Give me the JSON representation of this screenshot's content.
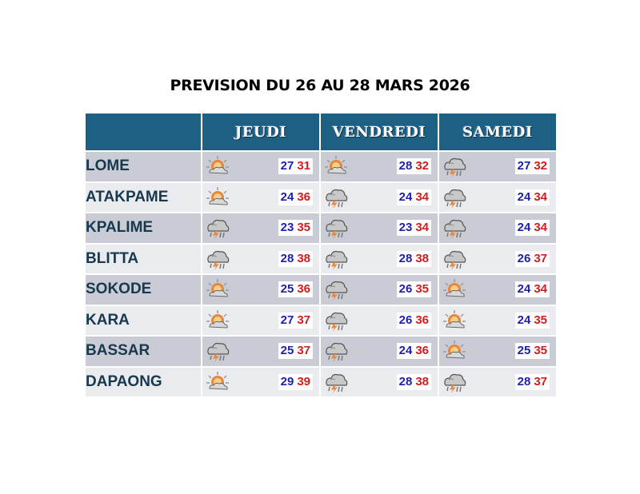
{
  "title": "PREVISION DU 26 AU 28 MARS 2026",
  "days": [
    "JEUDI",
    "VENDREDI",
    "SAMEDI"
  ],
  "colors": {
    "header_bg": "#1e5f84",
    "min_temp": "#1f1fa8",
    "max_temp": "#d41c1c",
    "row_dark": "#c9ccd5",
    "row_light": "#eaebee"
  },
  "rows": [
    {
      "city": "LOME",
      "f": [
        {
          "icon": "sun-cloud-icon",
          "min": "27",
          "max": "31"
        },
        {
          "icon": "sun-cloud-icon",
          "min": "28",
          "max": "32"
        },
        {
          "icon": "storm-cloud-icon",
          "min": "27",
          "max": "32"
        }
      ]
    },
    {
      "city": "ATAKPAME",
      "f": [
        {
          "icon": "sun-cloud-icon",
          "min": "24",
          "max": "36"
        },
        {
          "icon": "storm-cloud-icon",
          "min": "24",
          "max": "34"
        },
        {
          "icon": "storm-cloud-icon",
          "min": "24",
          "max": "34"
        }
      ]
    },
    {
      "city": "KPALIME",
      "f": [
        {
          "icon": "storm-cloud-icon",
          "min": "23",
          "max": "35"
        },
        {
          "icon": "storm-cloud-icon",
          "min": "23",
          "max": "34"
        },
        {
          "icon": "storm-cloud-icon",
          "min": "24",
          "max": "34"
        }
      ]
    },
    {
      "city": "BLITTA",
      "f": [
        {
          "icon": "storm-cloud-icon",
          "min": "28",
          "max": "38"
        },
        {
          "icon": "storm-cloud-icon",
          "min": "28",
          "max": "38"
        },
        {
          "icon": "storm-cloud-icon",
          "min": "26",
          "max": "37"
        }
      ]
    },
    {
      "city": "SOKODE",
      "f": [
        {
          "icon": "sun-cloud-icon",
          "min": "25",
          "max": "36"
        },
        {
          "icon": "storm-cloud-icon",
          "min": "26",
          "max": "35"
        },
        {
          "icon": "sun-cloud-icon",
          "min": "24",
          "max": "34"
        }
      ]
    },
    {
      "city": "KARA",
      "f": [
        {
          "icon": "sun-cloud-icon",
          "min": "27",
          "max": "37"
        },
        {
          "icon": "storm-cloud-icon",
          "min": "26",
          "max": "36"
        },
        {
          "icon": "sun-cloud-icon",
          "min": "24",
          "max": "35"
        }
      ]
    },
    {
      "city": "BASSAR",
      "f": [
        {
          "icon": "storm-cloud-icon",
          "min": "25",
          "max": "37"
        },
        {
          "icon": "storm-cloud-icon",
          "min": "24",
          "max": "36"
        },
        {
          "icon": "sun-cloud-icon",
          "min": "25",
          "max": "35"
        }
      ]
    },
    {
      "city": "DAPAONG",
      "f": [
        {
          "icon": "sun-cloud-icon",
          "min": "29",
          "max": "39"
        },
        {
          "icon": "storm-cloud-icon",
          "min": "28",
          "max": "38"
        },
        {
          "icon": "storm-cloud-icon",
          "min": "28",
          "max": "37"
        }
      ]
    }
  ]
}
